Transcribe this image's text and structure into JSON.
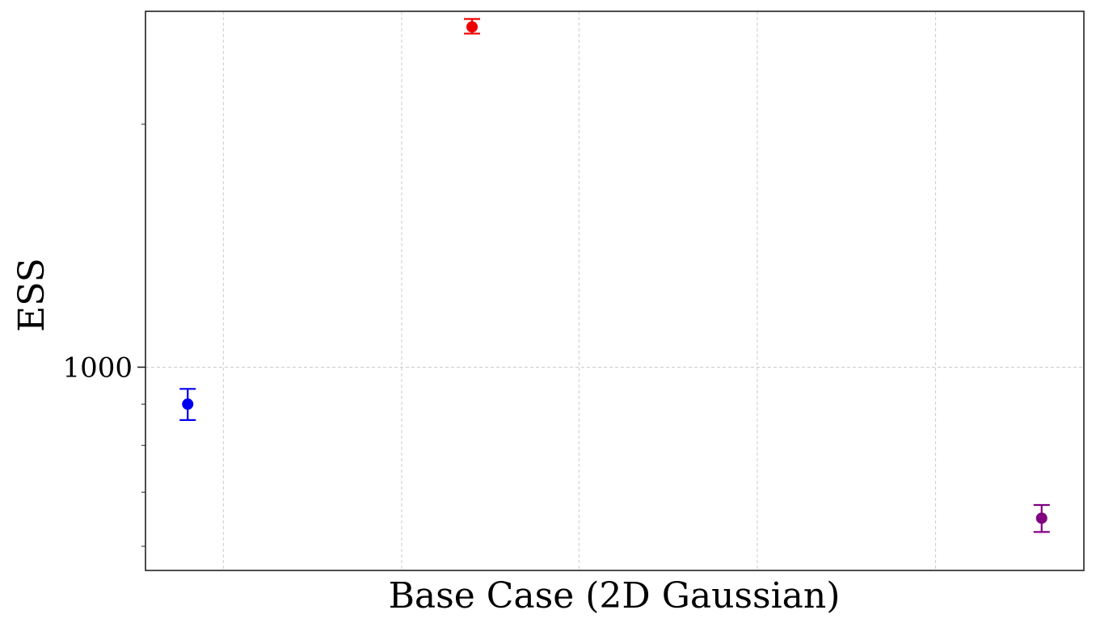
{
  "chart_data": {
    "type": "scatter",
    "title": "",
    "xlabel": "Base Case (2D Gaussian)",
    "ylabel": "ESS",
    "y_scale": "log",
    "ylim": [
      560,
      2760
    ],
    "y_ticks": [
      {
        "value": 1000,
        "label": "1000"
      }
    ],
    "y_minor_ticks": [
      600,
      700,
      800,
      900,
      2000,
      3000
    ],
    "x_gridlines": 5,
    "grid": true,
    "legend": "none",
    "points": [
      {
        "x": 0.045,
        "y": 900,
        "err_low": 40,
        "err_high": 40,
        "color": "#0000ee"
      },
      {
        "x": 0.348,
        "y": 2640,
        "err_low": 50,
        "err_high": 60,
        "color": "#ee0000"
      },
      {
        "x": 0.955,
        "y": 650,
        "err_low": 25,
        "err_high": 25,
        "color": "#800080"
      }
    ]
  }
}
